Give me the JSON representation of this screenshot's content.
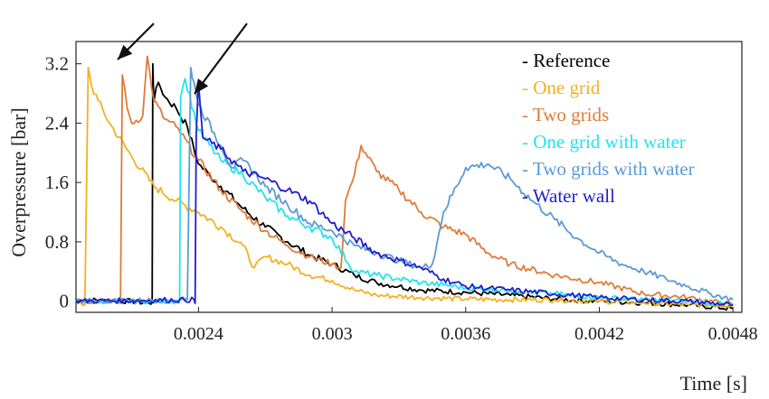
{
  "chart_data": {
    "type": "line",
    "xlabel": "Time [s]",
    "ylabel": "Overpressure [bar]",
    "xlim": [
      0.00185,
      0.00484
    ],
    "ylim": [
      -0.15,
      3.5
    ],
    "xticks": [
      0.0024,
      0.003,
      0.0036,
      0.0042,
      0.0048
    ],
    "xtick_labels": [
      "0.0024",
      "0.003",
      "0.0036",
      "0.0042",
      "0.0048"
    ],
    "yticks": [
      0,
      0.8,
      1.6,
      2.4,
      3.2
    ],
    "ytick_labels": [
      "0",
      "0.8",
      "1.6",
      "2.4",
      "3.2"
    ],
    "grid": false,
    "legend_position": "top-right",
    "annotations": [
      "arrow pointing to Two grids peak",
      "arrow pointing to Water wall peak"
    ],
    "series": [
      {
        "name": "Reference",
        "color": "#000000",
        "points": [
          [
            0.00185,
            0.02
          ],
          [
            0.0021,
            0.0
          ],
          [
            0.00218,
            -0.03
          ],
          [
            0.002192,
            -0.02
          ],
          [
            0.002195,
            3.2
          ],
          [
            0.0022,
            2.7
          ],
          [
            0.00222,
            2.95
          ],
          [
            0.00225,
            2.75
          ],
          [
            0.0023,
            2.6
          ],
          [
            0.00235,
            2.35
          ],
          [
            0.0024,
            1.85
          ],
          [
            0.00245,
            1.7
          ],
          [
            0.0025,
            1.55
          ],
          [
            0.0026,
            1.25
          ],
          [
            0.0027,
            1.0
          ],
          [
            0.0028,
            0.8
          ],
          [
            0.0029,
            0.62
          ],
          [
            0.003,
            0.5
          ],
          [
            0.0031,
            0.35
          ],
          [
            0.0032,
            0.25
          ],
          [
            0.0033,
            0.2
          ],
          [
            0.0034,
            0.15
          ],
          [
            0.0036,
            0.12
          ],
          [
            0.0038,
            0.08
          ],
          [
            0.004,
            0.03
          ],
          [
            0.0042,
            0.0
          ],
          [
            0.0044,
            -0.02
          ],
          [
            0.0046,
            -0.05
          ],
          [
            0.0048,
            -0.1
          ]
        ]
      },
      {
        "name": "One grid",
        "color": "#F5B021",
        "points": [
          [
            0.00185,
            0.0
          ],
          [
            0.00189,
            -0.05
          ],
          [
            0.001905,
            3.15
          ],
          [
            0.00192,
            2.9
          ],
          [
            0.00195,
            2.7
          ],
          [
            0.002,
            2.4
          ],
          [
            0.0021,
            1.95
          ],
          [
            0.0022,
            1.55
          ],
          [
            0.0023,
            1.35
          ],
          [
            0.0024,
            1.2
          ],
          [
            0.0025,
            1.0
          ],
          [
            0.0026,
            0.75
          ],
          [
            0.00265,
            0.45
          ],
          [
            0.0027,
            0.6
          ],
          [
            0.0028,
            0.5
          ],
          [
            0.0029,
            0.35
          ],
          [
            0.003,
            0.28
          ],
          [
            0.0031,
            0.15
          ],
          [
            0.0032,
            0.08
          ],
          [
            0.0034,
            0.05
          ],
          [
            0.0036,
            0.03
          ],
          [
            0.0038,
            0.02
          ],
          [
            0.004,
            0.02
          ],
          [
            0.0042,
            0.0
          ],
          [
            0.0044,
            -0.02
          ],
          [
            0.0046,
            -0.05
          ],
          [
            0.0048,
            -0.05
          ]
        ]
      },
      {
        "name": "Two grids",
        "color": "#E07B39",
        "points": [
          [
            0.00185,
            0.0
          ],
          [
            0.00205,
            0.0
          ],
          [
            0.002058,
            3.05
          ],
          [
            0.00208,
            2.6
          ],
          [
            0.0021,
            2.4
          ],
          [
            0.00215,
            2.5
          ],
          [
            0.00217,
            3.3
          ],
          [
            0.0022,
            2.7
          ],
          [
            0.00225,
            2.45
          ],
          [
            0.0023,
            2.35
          ],
          [
            0.0024,
            1.9
          ],
          [
            0.0025,
            1.5
          ],
          [
            0.0026,
            1.2
          ],
          [
            0.0027,
            0.95
          ],
          [
            0.0028,
            0.75
          ],
          [
            0.0029,
            0.6
          ],
          [
            0.003,
            0.5
          ],
          [
            0.00304,
            0.45
          ],
          [
            0.00306,
            1.35
          ],
          [
            0.0031,
            1.7
          ],
          [
            0.00313,
            2.1
          ],
          [
            0.0032,
            1.75
          ],
          [
            0.0033,
            1.5
          ],
          [
            0.0034,
            1.2
          ],
          [
            0.0035,
            1.0
          ],
          [
            0.0036,
            0.9
          ],
          [
            0.0037,
            0.65
          ],
          [
            0.0038,
            0.5
          ],
          [
            0.004,
            0.35
          ],
          [
            0.0042,
            0.25
          ],
          [
            0.0044,
            0.1
          ],
          [
            0.0046,
            0.05
          ],
          [
            0.0048,
            -0.05
          ]
        ]
      },
      {
        "name": "One grid with water",
        "color": "#22E4EE",
        "points": [
          [
            0.00185,
            0.0
          ],
          [
            0.0023,
            0.0
          ],
          [
            0.002315,
            -0.02
          ],
          [
            0.00232,
            2.75
          ],
          [
            0.00234,
            3.0
          ],
          [
            0.0024,
            2.3
          ],
          [
            0.0025,
            1.9
          ],
          [
            0.0026,
            1.7
          ],
          [
            0.0027,
            1.4
          ],
          [
            0.0028,
            1.15
          ],
          [
            0.0029,
            1.0
          ],
          [
            0.003,
            0.85
          ],
          [
            0.0031,
            0.4
          ],
          [
            0.0032,
            0.35
          ],
          [
            0.0033,
            0.3
          ],
          [
            0.0034,
            0.25
          ],
          [
            0.0035,
            0.22
          ],
          [
            0.0036,
            0.18
          ],
          [
            0.0038,
            0.15
          ],
          [
            0.004,
            0.1
          ],
          [
            0.0042,
            0.05
          ],
          [
            0.0044,
            0.02
          ],
          [
            0.0046,
            0.0
          ],
          [
            0.0048,
            -0.05
          ]
        ]
      },
      {
        "name": "Two grids with water",
        "color": "#5B9BD5",
        "points": [
          [
            0.00185,
            0.0
          ],
          [
            0.00235,
            0.02
          ],
          [
            0.002365,
            3.15
          ],
          [
            0.00238,
            2.95
          ],
          [
            0.0024,
            2.65
          ],
          [
            0.0025,
            2.1
          ],
          [
            0.00255,
            1.8
          ],
          [
            0.0026,
            1.9
          ],
          [
            0.0027,
            1.55
          ],
          [
            0.0028,
            1.3
          ],
          [
            0.0029,
            1.05
          ],
          [
            0.003,
            0.95
          ],
          [
            0.0031,
            0.75
          ],
          [
            0.0032,
            0.65
          ],
          [
            0.0033,
            0.55
          ],
          [
            0.0034,
            0.45
          ],
          [
            0.00345,
            0.5
          ],
          [
            0.0035,
            1.2
          ],
          [
            0.0036,
            1.8
          ],
          [
            0.0037,
            1.85
          ],
          [
            0.0038,
            1.65
          ],
          [
            0.0039,
            1.35
          ],
          [
            0.004,
            1.1
          ],
          [
            0.0041,
            0.85
          ],
          [
            0.0042,
            0.65
          ],
          [
            0.0043,
            0.5
          ],
          [
            0.0044,
            0.4
          ],
          [
            0.0045,
            0.3
          ],
          [
            0.0046,
            0.2
          ],
          [
            0.0047,
            0.1
          ],
          [
            0.0048,
            0.02
          ]
        ]
      },
      {
        "name": "Water wall",
        "color": "#1F1FD1",
        "points": [
          [
            0.00185,
            0.0
          ],
          [
            0.00238,
            0.02
          ],
          [
            0.002385,
            -0.03
          ],
          [
            0.00239,
            2.25
          ],
          [
            0.0024,
            2.95
          ],
          [
            0.00242,
            2.2
          ],
          [
            0.0025,
            2.05
          ],
          [
            0.0026,
            1.75
          ],
          [
            0.0027,
            1.65
          ],
          [
            0.0028,
            1.5
          ],
          [
            0.0029,
            1.35
          ],
          [
            0.003,
            1.05
          ],
          [
            0.0031,
            0.85
          ],
          [
            0.0032,
            0.65
          ],
          [
            0.0033,
            0.55
          ],
          [
            0.0034,
            0.45
          ],
          [
            0.0035,
            0.3
          ],
          [
            0.0036,
            0.2
          ],
          [
            0.0038,
            0.15
          ],
          [
            0.004,
            0.1
          ],
          [
            0.0042,
            0.05
          ],
          [
            0.0044,
            0.02
          ],
          [
            0.0046,
            0.0
          ],
          [
            0.0048,
            -0.05
          ]
        ]
      }
    ]
  }
}
